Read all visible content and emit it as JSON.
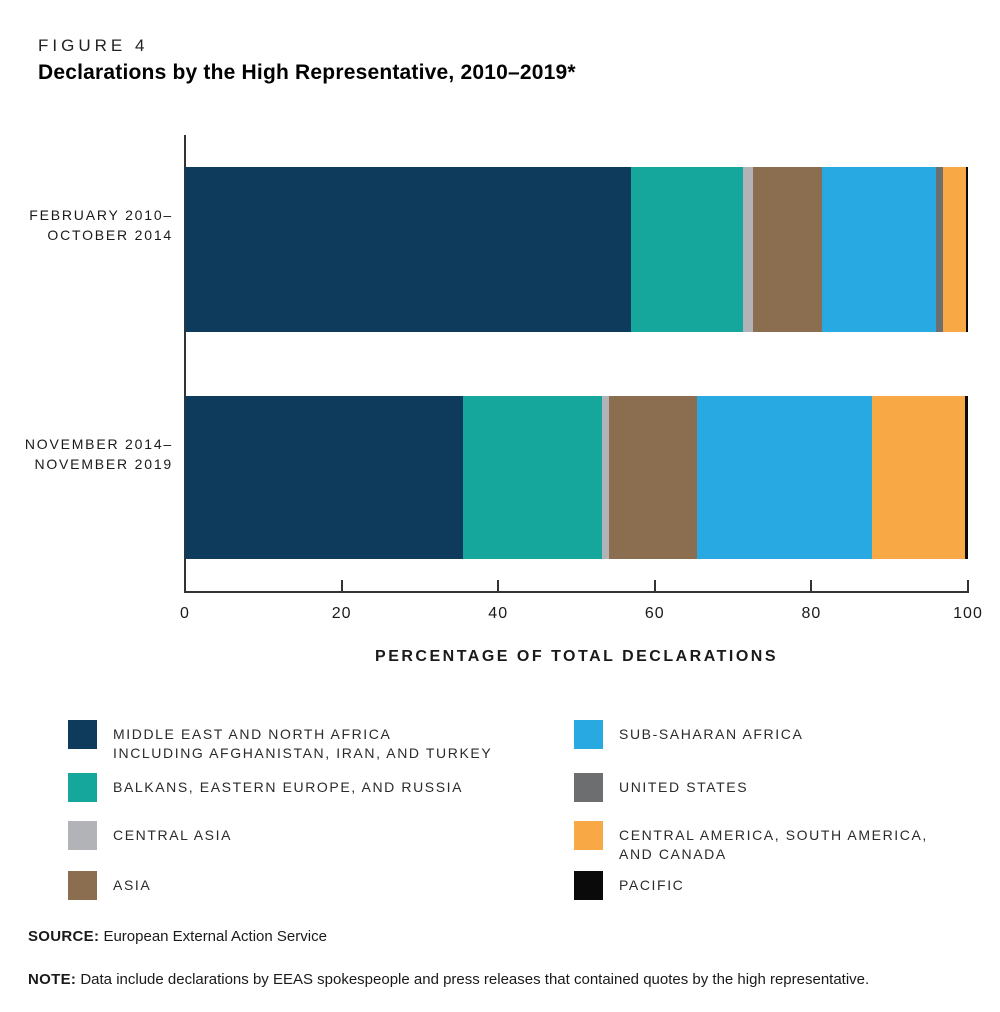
{
  "figure": {
    "label": "FIGURE 4",
    "title": "Declarations by the High Representative, 2010–2019*"
  },
  "chart_data": {
    "type": "bar",
    "orientation": "horizontal",
    "stacked": true,
    "categories": [
      "FEBRUARY 2010–OCTOBER 2014",
      "NOVEMBER 2014–NOVEMBER 2019"
    ],
    "category_label_lines": [
      [
        "FEBRUARY 2010–",
        "OCTOBER 2014"
      ],
      [
        "NOVEMBER 2014–",
        "NOVEMBER 2019"
      ]
    ],
    "series": [
      {
        "name": "MIDDLE EAST AND NORTH AFRICA INCLUDING AFGHANISTAN, IRAN, AND TURKEY",
        "color": "#0e3a5c",
        "values": [
          57.0,
          35.5
        ]
      },
      {
        "name": "BALKANS, EASTERN EUROPE, AND RUSSIA",
        "color": "#15a79b",
        "values": [
          14.3,
          17.8
        ]
      },
      {
        "name": "CENTRAL ASIA",
        "color": "#b1b3b6",
        "values": [
          1.3,
          0.9
        ]
      },
      {
        "name": "ASIA",
        "color": "#8b6e50",
        "values": [
          8.8,
          11.2
        ]
      },
      {
        "name": "SUB-SAHARAN AFRICA",
        "color": "#29a9e1",
        "values": [
          14.5,
          22.3
        ]
      },
      {
        "name": "UNITED STATES",
        "color": "#6c6e70",
        "values": [
          0.9,
          0
        ]
      },
      {
        "name": "CENTRAL AMERICA, SOUTH AMERICA, AND CANADA",
        "color": "#f8a845",
        "values": [
          2.9,
          11.9
        ]
      },
      {
        "name": "PACIFIC",
        "color": "#0a0a0a",
        "values": [
          0.3,
          0.4
        ]
      }
    ],
    "xlabel": "PERCENTAGE OF TOTAL DECLARATIONS",
    "ylabel": "",
    "xlim": [
      0,
      100
    ],
    "x_ticks": [
      0,
      20,
      40,
      60,
      80,
      100
    ],
    "grid": false,
    "legend_position": "bottom"
  },
  "legend": {
    "columns": [
      [
        {
          "color": "#0e3a5c",
          "lines": [
            "MIDDLE EAST AND NORTH AFRICA",
            "INCLUDING AFGHANISTAN, IRAN, AND TURKEY"
          ]
        },
        {
          "color": "#15a79b",
          "lines": [
            "BALKANS, EASTERN EUROPE, AND RUSSIA"
          ]
        },
        {
          "color": "#b1b3b6",
          "lines": [
            "CENTRAL ASIA"
          ]
        },
        {
          "color": "#8b6e50",
          "lines": [
            "ASIA"
          ]
        }
      ],
      [
        {
          "color": "#29a9e1",
          "lines": [
            "SUB-SAHARAN AFRICA"
          ]
        },
        {
          "color": "#6c6e70",
          "lines": [
            "UNITED STATES"
          ]
        },
        {
          "color": "#f8a845",
          "lines": [
            "CENTRAL AMERICA, SOUTH AMERICA,",
            "AND CANADA"
          ]
        },
        {
          "color": "#0a0a0a",
          "lines": [
            "PACIFIC"
          ]
        }
      ]
    ],
    "row_tops": [
      720,
      773,
      821,
      871
    ]
  },
  "footer": {
    "source_label": "SOURCE:",
    "source_text": "European External Action Service",
    "note_label": "NOTE:",
    "note_text": "Data include declarations by EEAS spokespeople and press releases that contained quotes by the high representative."
  }
}
